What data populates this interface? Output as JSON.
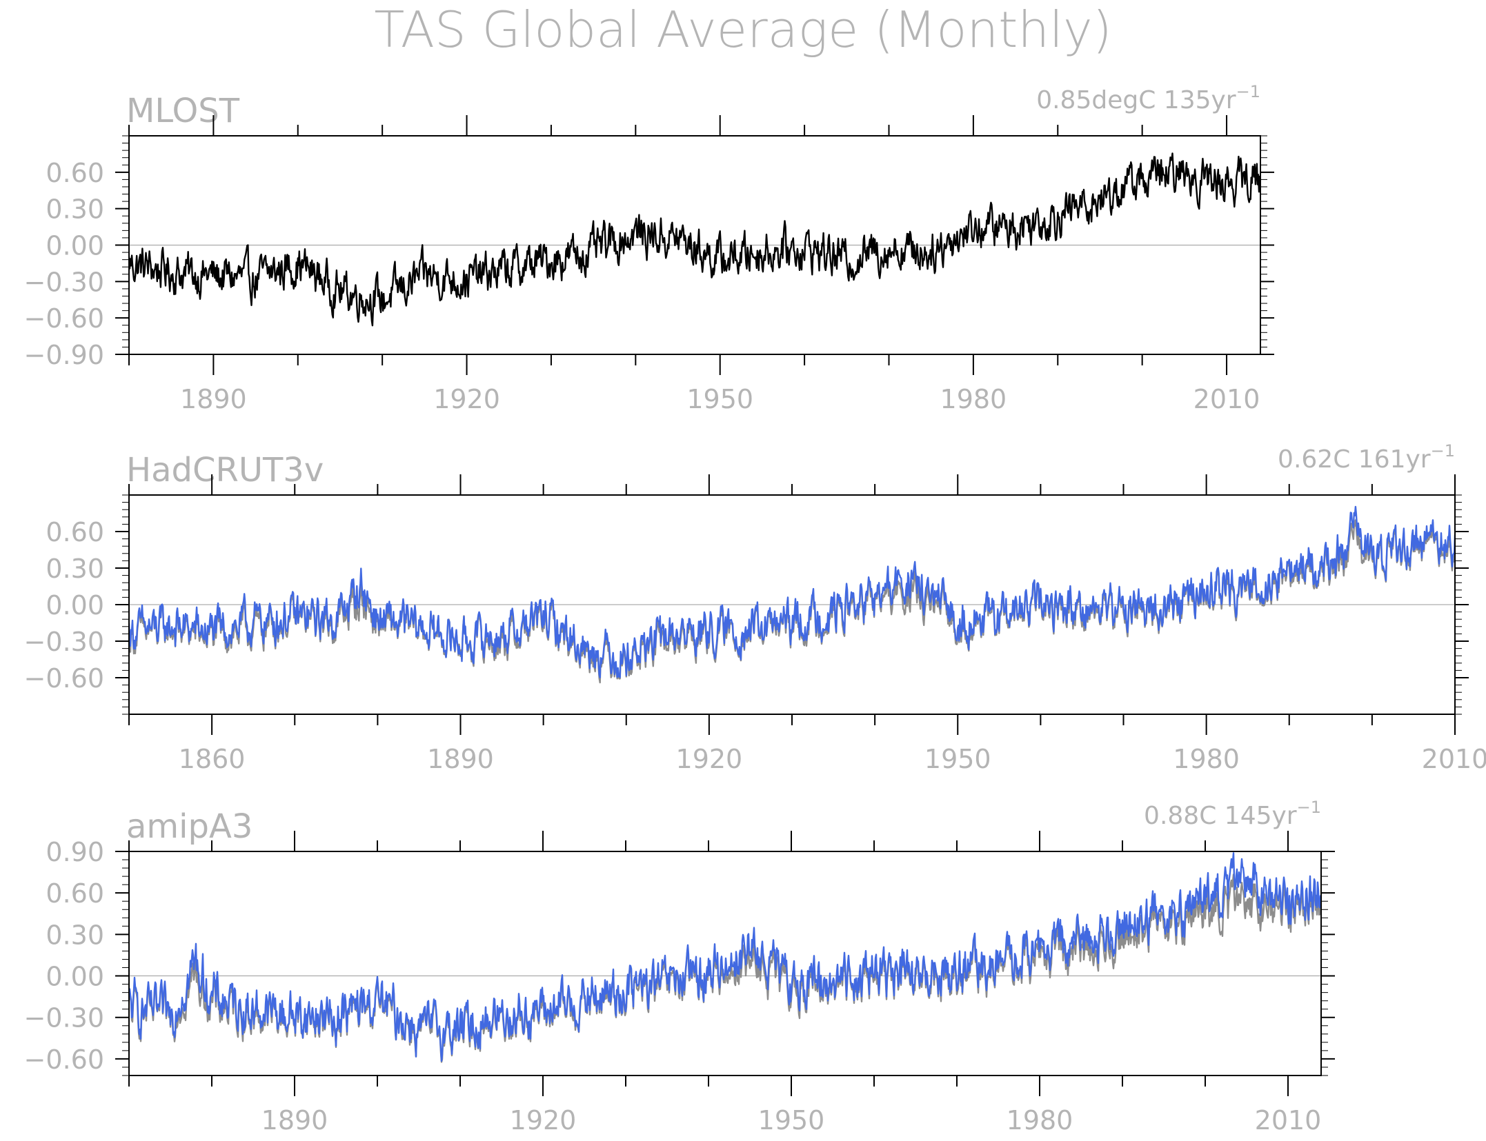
{
  "figure": {
    "title": "TAS Global Average (Monthly)"
  },
  "chart_data": [
    {
      "type": "line",
      "title": "MLOST",
      "trend_label": "0.85degC 135yr",
      "trend_exponent": "−1",
      "xlim": [
        1880,
        2014
      ],
      "ylim": [
        -0.9,
        0.9
      ],
      "xticks": [
        1890,
        1920,
        1950,
        1980,
        2010
      ],
      "yticks": [
        0.6,
        0.3,
        0.0,
        -0.3,
        -0.6,
        -0.9
      ],
      "ytick_labels": [
        "0.60",
        "0.30",
        "0.00",
        "−0.30",
        "−0.60",
        "−0.90"
      ],
      "zero_line": true,
      "series": [
        {
          "color": "#000000",
          "x": [
            1880,
            1885,
            1890,
            1895,
            1900,
            1905,
            1910,
            1915,
            1920,
            1925,
            1930,
            1935,
            1940,
            1945,
            1950,
            1955,
            1960,
            1965,
            1970,
            1975,
            1980,
            1985,
            1990,
            1995,
            2000,
            2005,
            2010,
            2014
          ],
          "y": [
            -0.15,
            -0.22,
            -0.25,
            -0.28,
            -0.15,
            -0.38,
            -0.45,
            -0.25,
            -0.28,
            -0.2,
            -0.12,
            -0.05,
            0.1,
            0.05,
            -0.12,
            -0.05,
            -0.02,
            -0.12,
            -0.02,
            -0.05,
            0.15,
            0.15,
            0.25,
            0.38,
            0.55,
            0.58,
            0.52,
            0.55
          ]
        }
      ]
    },
    {
      "type": "line",
      "title": "HadCRUT3v",
      "trend_label": "0.62C 161yr",
      "trend_exponent": "−1",
      "xlim": [
        1850,
        2010
      ],
      "ylim": [
        -0.9,
        0.9
      ],
      "xticks": [
        1860,
        1890,
        1920,
        1950,
        1980,
        2010
      ],
      "yticks": [
        0.6,
        0.3,
        0.0,
        -0.3,
        -0.6
      ],
      "ytick_labels": [
        "0.60",
        "0.30",
        "0.00",
        "−0.30",
        "−0.60"
      ],
      "zero_line": true,
      "series": [
        {
          "color": "#8c8c8c",
          "x": [
            1850,
            1855,
            1860,
            1865,
            1870,
            1875,
            1878,
            1880,
            1885,
            1890,
            1895,
            1900,
            1905,
            1910,
            1915,
            1920,
            1925,
            1930,
            1935,
            1940,
            1944,
            1950,
            1955,
            1960,
            1965,
            1970,
            1975,
            1980,
            1985,
            1990,
            1995,
            1998,
            2000,
            2005,
            2010
          ],
          "y": [
            -0.25,
            -0.2,
            -0.25,
            -0.2,
            -0.12,
            -0.15,
            0.05,
            -0.15,
            -0.2,
            -0.3,
            -0.3,
            -0.12,
            -0.38,
            -0.45,
            -0.3,
            -0.25,
            -0.22,
            -0.18,
            -0.08,
            0.02,
            0.1,
            -0.15,
            -0.12,
            -0.02,
            -0.05,
            -0.05,
            -0.05,
            0.1,
            0.12,
            0.25,
            0.3,
            0.5,
            0.35,
            0.5,
            0.5
          ]
        },
        {
          "color": "#4169e1",
          "x": [
            1850,
            1855,
            1860,
            1865,
            1870,
            1875,
            1878,
            1880,
            1885,
            1890,
            1895,
            1900,
            1905,
            1910,
            1915,
            1920,
            1925,
            1930,
            1935,
            1940,
            1944,
            1950,
            1955,
            1960,
            1965,
            1970,
            1975,
            1980,
            1985,
            1990,
            1995,
            1998,
            2000,
            2005,
            2010
          ],
          "y": [
            -0.22,
            -0.18,
            -0.22,
            -0.15,
            -0.1,
            -0.12,
            0.15,
            -0.12,
            -0.18,
            -0.3,
            -0.25,
            -0.1,
            -0.35,
            -0.42,
            -0.25,
            -0.22,
            -0.2,
            -0.15,
            -0.05,
            0.05,
            0.2,
            -0.12,
            -0.1,
            0.0,
            -0.02,
            -0.02,
            -0.03,
            0.12,
            0.15,
            0.28,
            0.33,
            0.6,
            0.38,
            0.52,
            0.55
          ]
        }
      ]
    },
    {
      "type": "line",
      "title": "amipA3",
      "trend_label": "0.88C 145yr",
      "trend_exponent": "−1",
      "xlim": [
        1870,
        2014
      ],
      "ylim": [
        -0.72,
        0.9
      ],
      "xticks": [
        1890,
        1920,
        1950,
        1980,
        2010
      ],
      "yticks": [
        0.9,
        0.6,
        0.3,
        0.0,
        -0.3,
        -0.6
      ],
      "ytick_labels": [
        "0.90",
        "0.60",
        "0.30",
        "0.00",
        "−0.30",
        "−0.60"
      ],
      "zero_line": true,
      "series": [
        {
          "color": "#8c8c8c",
          "x": [
            1870,
            1875,
            1878,
            1880,
            1885,
            1890,
            1895,
            1900,
            1905,
            1910,
            1915,
            1920,
            1925,
            1930,
            1935,
            1940,
            1945,
            1950,
            1955,
            1960,
            1965,
            1970,
            1975,
            1980,
            1985,
            1990,
            1995,
            2000,
            2005,
            2010,
            2014
          ],
          "y": [
            -0.25,
            -0.3,
            0.0,
            -0.2,
            -0.28,
            -0.3,
            -0.32,
            -0.2,
            -0.4,
            -0.4,
            -0.3,
            -0.28,
            -0.2,
            -0.12,
            -0.08,
            0.0,
            0.12,
            -0.1,
            -0.05,
            0.02,
            -0.05,
            0.02,
            0.05,
            0.15,
            0.18,
            0.3,
            0.4,
            0.45,
            0.52,
            0.5,
            0.55
          ]
        },
        {
          "color": "#4169e1",
          "x": [
            1870,
            1875,
            1878,
            1880,
            1885,
            1890,
            1895,
            1900,
            1905,
            1910,
            1915,
            1920,
            1925,
            1930,
            1935,
            1940,
            1945,
            1950,
            1955,
            1960,
            1965,
            1970,
            1975,
            1980,
            1985,
            1990,
            1995,
            2000,
            2005,
            2010,
            2014
          ],
          "y": [
            -0.22,
            -0.28,
            0.1,
            -0.15,
            -0.25,
            -0.28,
            -0.3,
            -0.18,
            -0.38,
            -0.38,
            -0.28,
            -0.25,
            -0.18,
            -0.1,
            -0.05,
            0.02,
            0.2,
            -0.05,
            -0.02,
            0.05,
            -0.02,
            0.05,
            0.08,
            0.2,
            0.25,
            0.38,
            0.45,
            0.55,
            0.68,
            0.55,
            0.6
          ]
        }
      ]
    }
  ]
}
